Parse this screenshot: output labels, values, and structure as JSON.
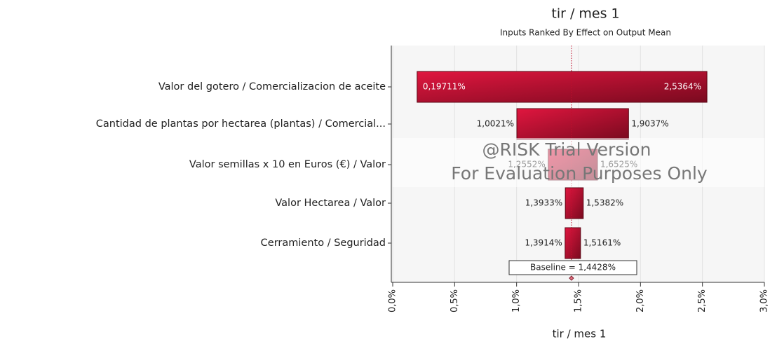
{
  "chart_data": {
    "type": "tornado",
    "title": "tir / mes 1",
    "subtitle": "Inputs Ranked By Effect on Output Mean",
    "x_label": "tir / mes 1",
    "categories": [
      "Valor del gotero / Comercializacion de aceite",
      "Cantidad de plantas por hectarea (plantas) / Comercial...",
      "Valor semillas x 10 en Euros (€) / Valor",
      "Valor Hectarea / Valor",
      "Cerramiento / Seguridad"
    ],
    "series": [
      {
        "values": [
          0.19711,
          1.0021,
          1.2552,
          1.3933,
          1.3914
        ],
        "value_labels": [
          "0,19711%",
          "1,0021%",
          "1,2552%",
          "1,3933%",
          "1,3914%"
        ]
      },
      {
        "values": [
          2.5364,
          1.9037,
          1.6525,
          1.5382,
          1.5161
        ],
        "value_labels": [
          "2,5364%",
          "1,9037%",
          "1,6525%",
          "1,5382%",
          "1,5161%"
        ]
      }
    ],
    "color": "#c0102e",
    "baseline": 1.4428,
    "baseline_label": "Baseline = 1,4428%",
    "xlim": [
      0,
      3
    ],
    "xticks": [
      {
        "value": 0,
        "label": "0,0%"
      },
      {
        "value": 0.5,
        "label": "0,5%"
      },
      {
        "value": 1,
        "label": "1,0%"
      },
      {
        "value": 1.5,
        "label": "1,5%"
      },
      {
        "value": 2,
        "label": "2,0%"
      },
      {
        "value": 2.5,
        "label": "2,5%"
      },
      {
        "value": 3,
        "label": "3,0%"
      }
    ],
    "grid": true,
    "annotations": [
      "@RISK Trial Version",
      "For Evaluation Purposes Only"
    ]
  }
}
